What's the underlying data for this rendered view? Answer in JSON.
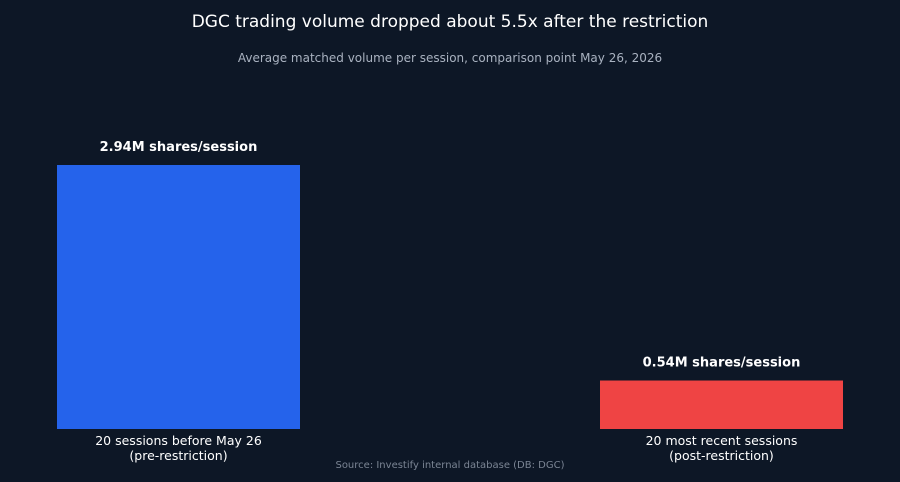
{
  "chart_data": {
    "type": "bar",
    "title": "DGC trading volume dropped about 5.5x after the restriction",
    "subtitle": "Average matched volume per session, comparison point May 26, 2026",
    "categories": [
      [
        "20 sessions before May 26",
        "(pre-restriction)"
      ],
      [
        "20 most recent sessions",
        "(post-restriction)"
      ]
    ],
    "values": [
      2.94,
      0.54
    ],
    "value_labels": [
      "2.94M shares/session",
      "0.54M shares/session"
    ],
    "unit": "M shares/session",
    "colors": [
      "#2563eb",
      "#ef4444"
    ],
    "ylim": [
      0,
      2.94
    ],
    "grid": false,
    "legend": "none",
    "source": "Source: Investify internal database (DB: DGC)"
  }
}
